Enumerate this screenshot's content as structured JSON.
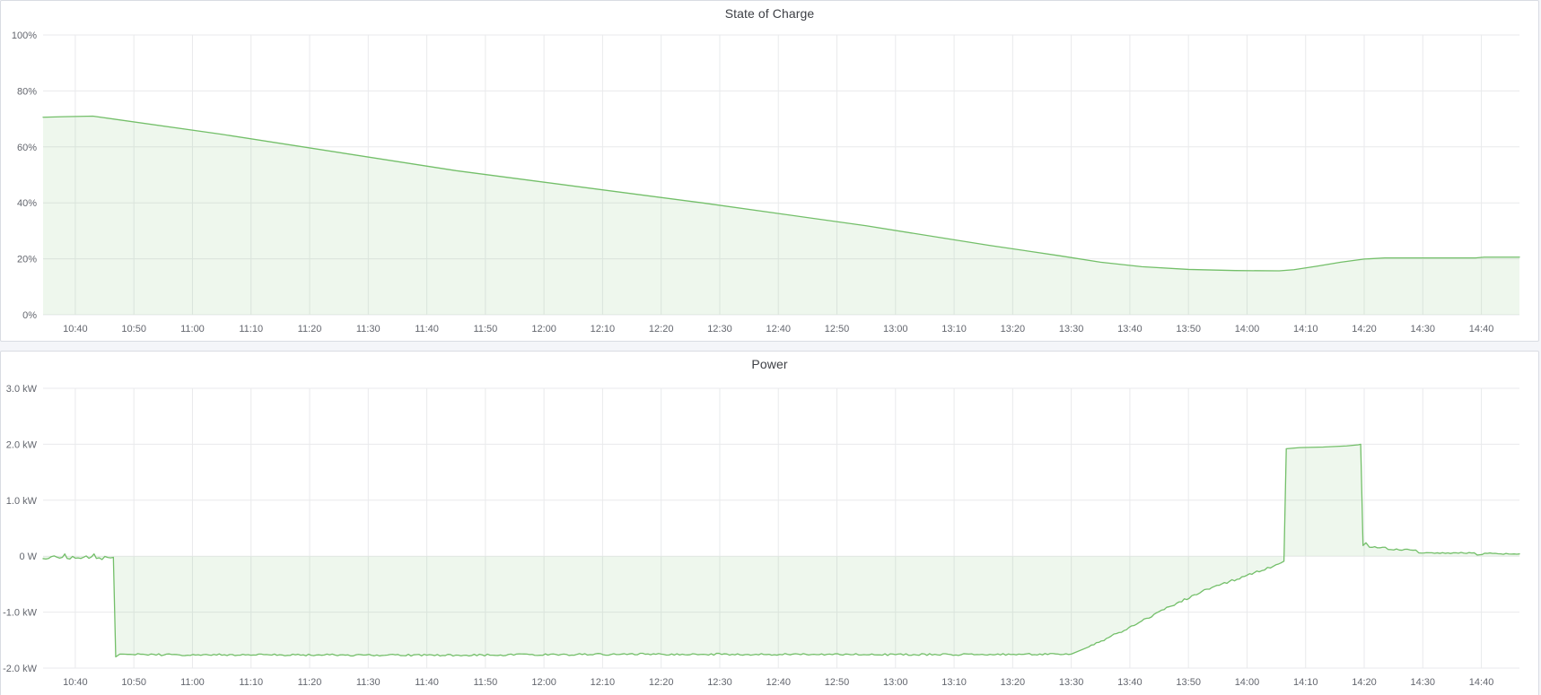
{
  "colors": {
    "series_green": "#73bf69",
    "series_fill": "rgba(115,191,105,0.12)",
    "grid_line": "#e9eaec",
    "axis_text": "#63666e",
    "title_text": "#3e4046",
    "panel_background": "#ffffff",
    "panel_border": "#d9dce3",
    "page_background": "#f4f5f9"
  },
  "panels": [
    {
      "title": "State of Charge"
    },
    {
      "title": "Power"
    }
  ],
  "chart_data": [
    {
      "type": "area",
      "title": "State of Charge",
      "unit": "%",
      "legend_position": "none",
      "grid": true,
      "ylim": [
        0,
        100
      ],
      "xlim_minutes": [
        634.5,
        886.5
      ],
      "y_ticks": [
        {
          "value": 0,
          "label": "0%"
        },
        {
          "value": 20,
          "label": "20%"
        },
        {
          "value": 40,
          "label": "40%"
        },
        {
          "value": 60,
          "label": "60%"
        },
        {
          "value": 80,
          "label": "80%"
        },
        {
          "value": 100,
          "label": "100%"
        }
      ],
      "x_ticks": {
        "start_minute": 640,
        "step_minutes": 10,
        "labels": [
          "10:40",
          "10:50",
          "11:00",
          "11:10",
          "11:20",
          "11:30",
          "11:40",
          "11:50",
          "12:00",
          "12:10",
          "12:20",
          "12:30",
          "12:40",
          "12:50",
          "13:00",
          "13:10",
          "13:20",
          "13:30",
          "13:40",
          "13:50",
          "14:00",
          "14:10",
          "14:20",
          "14:30",
          "14:40"
        ]
      },
      "series": [
        {
          "name": "State of Charge",
          "points": [
            [
              634.5,
              70.6
            ],
            [
              638,
              70.8
            ],
            [
              643,
              71.0
            ],
            [
              665,
              64.5
            ],
            [
              705,
              51.5
            ],
            [
              747,
              40.0
            ],
            [
              775,
              31.8
            ],
            [
              796,
              24.8
            ],
            [
              808,
              21.1
            ],
            [
              815,
              18.8
            ],
            [
              822,
              17.2
            ],
            [
              830,
              16.2
            ],
            [
              838,
              15.8
            ],
            [
              845.5,
              15.7
            ],
            [
              848,
              16.1
            ],
            [
              852,
              17.4
            ],
            [
              856,
              18.8
            ],
            [
              860,
              19.9
            ],
            [
              863.5,
              20.3
            ],
            [
              879,
              20.3
            ],
            [
              880.5,
              20.6
            ],
            [
              886.5,
              20.6
            ]
          ],
          "noise_segments": []
        }
      ]
    },
    {
      "type": "area",
      "title": "Power",
      "unit": "kW",
      "legend_position": "none",
      "grid": true,
      "ylim": [
        -2,
        3
      ],
      "xlim_minutes": [
        634.5,
        886.5
      ],
      "y_ticks": [
        {
          "value": -2,
          "label": "-2.0 kW"
        },
        {
          "value": -1,
          "label": "-1.0 kW"
        },
        {
          "value": 0,
          "label": "0 W"
        },
        {
          "value": 1,
          "label": "1.0 kW"
        },
        {
          "value": 2,
          "label": "2.0 kW"
        },
        {
          "value": 3,
          "label": "3.0 kW"
        }
      ],
      "x_ticks": {
        "start_minute": 640,
        "step_minutes": 10,
        "labels": [
          "10:40",
          "10:50",
          "11:00",
          "11:10",
          "11:20",
          "11:30",
          "11:40",
          "11:50",
          "12:00",
          "12:10",
          "12:20",
          "12:30",
          "12:40",
          "12:50",
          "13:00",
          "13:10",
          "13:20",
          "13:30",
          "13:40",
          "13:50",
          "14:00",
          "14:10",
          "14:20",
          "14:30",
          "14:40"
        ]
      },
      "series": [
        {
          "name": "Power",
          "points": [
            [
              634.5,
              -0.03
            ],
            [
              637.8,
              -0.02
            ],
            [
              638.2,
              0.04
            ],
            [
              638.6,
              -0.04
            ],
            [
              642.8,
              -0.01
            ],
            [
              643.2,
              0.04
            ],
            [
              643.6,
              -0.04
            ],
            [
              646.5,
              -0.02
            ],
            [
              646.9,
              -1.8
            ],
            [
              647.6,
              -1.75
            ],
            [
              652,
              -1.76
            ],
            [
              700,
              -1.77
            ],
            [
              740,
              -1.75
            ],
            [
              780,
              -1.76
            ],
            [
              810,
              -1.75
            ],
            [
              813,
              -1.62
            ],
            [
              816,
              -1.47
            ],
            [
              819,
              -1.33
            ],
            [
              822,
              -1.16
            ],
            [
              825,
              -0.99
            ],
            [
              828,
              -0.84
            ],
            [
              831,
              -0.69
            ],
            [
              834,
              -0.56
            ],
            [
              837,
              -0.45
            ],
            [
              840,
              -0.34
            ],
            [
              842.5,
              -0.26
            ],
            [
              844.5,
              -0.18
            ],
            [
              845.8,
              -0.12
            ],
            [
              846.3,
              -0.09
            ],
            [
              846.7,
              1.92
            ],
            [
              849,
              1.94
            ],
            [
              853,
              1.95
            ],
            [
              857,
              1.97
            ],
            [
              859,
              1.99
            ],
            [
              859.4,
              2.0
            ],
            [
              859.8,
              0.19
            ],
            [
              860.3,
              0.24
            ],
            [
              860.9,
              0.16
            ],
            [
              863.6,
              0.16
            ],
            [
              864.1,
              0.12
            ],
            [
              868.8,
              0.11
            ],
            [
              869.3,
              0.06
            ],
            [
              878.8,
              0.06
            ],
            [
              879.3,
              0.02
            ],
            [
              881,
              0.05
            ],
            [
              886.5,
              0.04
            ]
          ],
          "noise_segments": [
            {
              "from": 634.5,
              "to": 646.4,
              "amp": 0.03
            },
            {
              "from": 648.5,
              "to": 810.0,
              "amp": 0.017
            },
            {
              "from": 812.0,
              "to": 845.0,
              "amp": 0.022
            },
            {
              "from": 860.5,
              "to": 886.5,
              "amp": 0.013
            }
          ]
        }
      ]
    }
  ]
}
